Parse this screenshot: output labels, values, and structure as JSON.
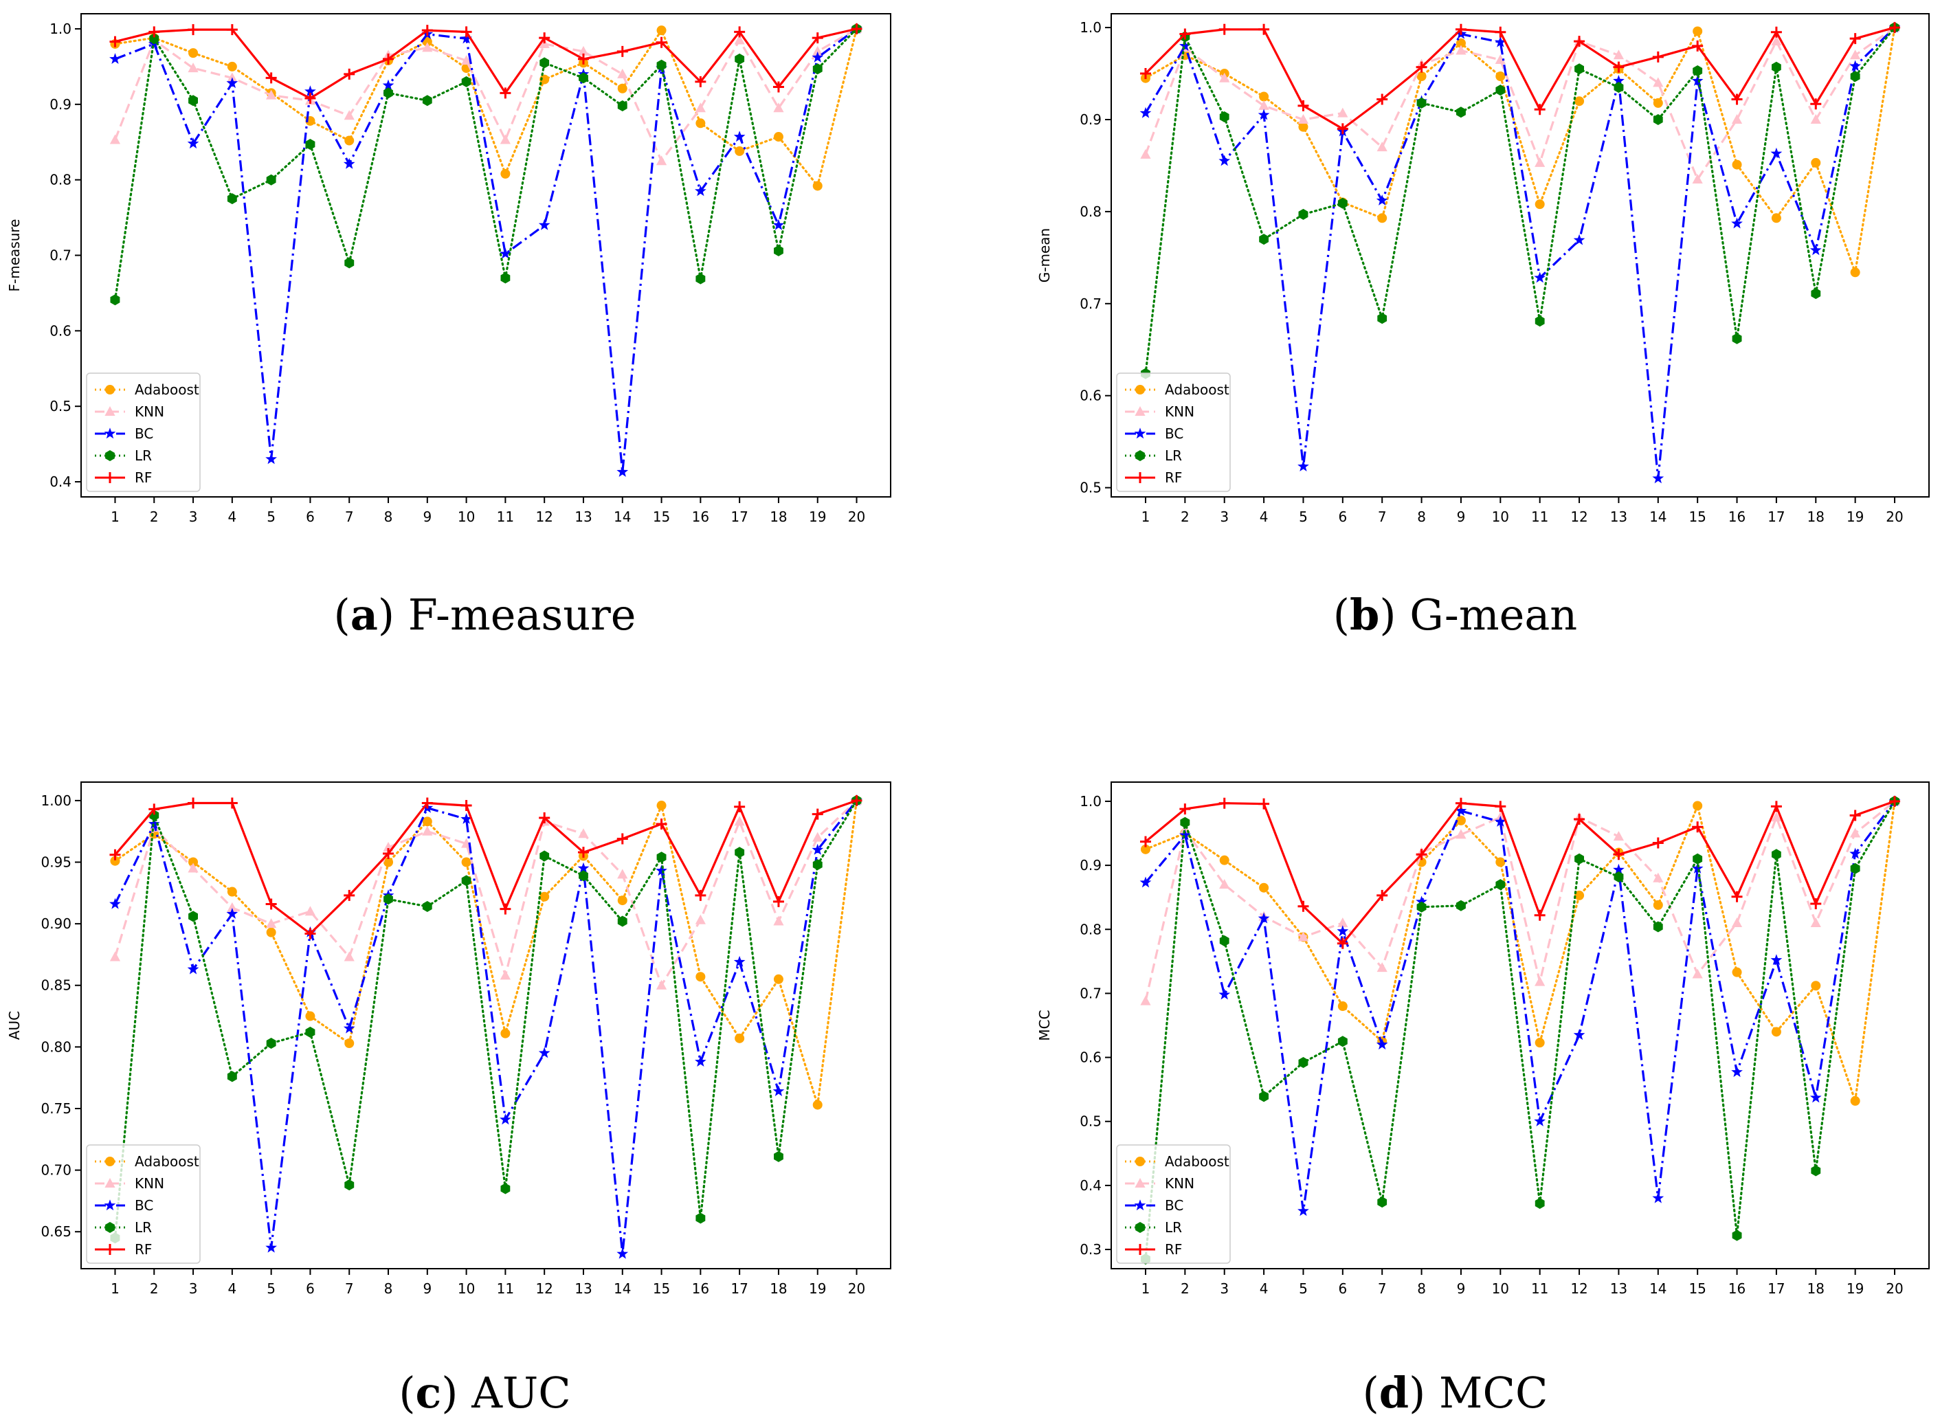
{
  "figure": {
    "captions": [
      {
        "letter": "a",
        "text": " F-measure"
      },
      {
        "letter": "b",
        "text": " G-mean"
      },
      {
        "letter": "c",
        "text": " AUC"
      },
      {
        "letter": "d",
        "text": " MCC"
      }
    ]
  },
  "series_styles": [
    {
      "name": "Adaboost",
      "color": "#ffa500",
      "marker": "circle",
      "dash": "dotted"
    },
    {
      "name": "KNN",
      "color": "#ffc0cb",
      "marker": "triangle",
      "dash": "dashed"
    },
    {
      "name": "BC",
      "color": "#0000ff",
      "marker": "star",
      "dash": "dashdot"
    },
    {
      "name": "LR",
      "color": "#008000",
      "marker": "hexagon",
      "dash": "dotted"
    },
    {
      "name": "RF",
      "color": "#ff0000",
      "marker": "plus",
      "dash": "solid"
    }
  ],
  "chart_data": [
    {
      "type": "line",
      "title": "",
      "xlabel": "",
      "ylabel": "F-measure",
      "x": [
        1,
        2,
        3,
        4,
        5,
        6,
        7,
        8,
        9,
        10,
        11,
        12,
        13,
        14,
        15,
        16,
        17,
        18,
        19,
        20
      ],
      "ylim": [
        0.38,
        1.02
      ],
      "yticks": [
        "0.4",
        "0.5",
        "0.6",
        "0.7",
        "0.8",
        "0.9",
        "1.0"
      ],
      "ytick_values": [
        0.4,
        0.5,
        0.6,
        0.7,
        0.8,
        0.9,
        1.0
      ],
      "legend": "lower-left",
      "grid": false,
      "series": [
        {
          "name": "Adaboost",
          "values": [
            0.98,
            0.988,
            0.968,
            0.95,
            0.915,
            0.878,
            0.852,
            0.958,
            0.983,
            0.948,
            0.808,
            0.933,
            0.955,
            0.921,
            0.998,
            0.875,
            0.838,
            0.857,
            0.792,
            1.0
          ]
        },
        {
          "name": "KNN",
          "values": [
            0.853,
            0.985,
            0.948,
            0.935,
            0.912,
            0.905,
            0.885,
            0.965,
            0.975,
            0.958,
            0.853,
            0.98,
            0.97,
            0.94,
            0.825,
            0.895,
            0.985,
            0.895,
            0.97,
            1.0
          ]
        },
        {
          "name": "BC",
          "values": [
            0.96,
            0.98,
            0.848,
            0.928,
            0.43,
            0.917,
            0.821,
            0.925,
            0.993,
            0.987,
            0.702,
            0.74,
            0.94,
            0.413,
            0.948,
            0.785,
            0.857,
            0.74,
            0.962,
            1.0
          ]
        },
        {
          "name": "LR",
          "values": [
            0.641,
            0.987,
            0.905,
            0.775,
            0.8,
            0.847,
            0.69,
            0.915,
            0.905,
            0.93,
            0.67,
            0.955,
            0.935,
            0.898,
            0.952,
            0.669,
            0.96,
            0.706,
            0.947,
            1.0
          ]
        },
        {
          "name": "RF",
          "values": [
            0.983,
            0.996,
            0.999,
            0.999,
            0.935,
            0.908,
            0.94,
            0.96,
            0.998,
            0.996,
            0.915,
            0.988,
            0.96,
            0.97,
            0.982,
            0.93,
            0.996,
            0.923,
            0.988,
            1.0
          ]
        }
      ]
    },
    {
      "type": "line",
      "title": "",
      "xlabel": "",
      "ylabel": "G-mean",
      "x": [
        1,
        2,
        3,
        4,
        5,
        6,
        7,
        8,
        9,
        10,
        11,
        12,
        13,
        14,
        15,
        16,
        17,
        18,
        19,
        20
      ],
      "ylim": [
        0.49,
        1.015
      ],
      "yticks": [
        "0.5",
        "0.6",
        "0.7",
        "0.8",
        "0.9",
        "1.0"
      ],
      "ytick_values": [
        0.5,
        0.6,
        0.7,
        0.8,
        0.9,
        1.0
      ],
      "legend": "lower-left",
      "grid": false,
      "series": [
        {
          "name": "Adaboost",
          "values": [
            0.945,
            0.97,
            0.95,
            0.925,
            0.892,
            0.81,
            0.793,
            0.947,
            0.983,
            0.947,
            0.808,
            0.92,
            0.955,
            0.918,
            0.996,
            0.851,
            0.793,
            0.853,
            0.734,
            1.0
          ]
        },
        {
          "name": "KNN",
          "values": [
            0.862,
            0.978,
            0.945,
            0.915,
            0.9,
            0.907,
            0.87,
            0.96,
            0.975,
            0.965,
            0.853,
            0.985,
            0.97,
            0.94,
            0.835,
            0.9,
            0.985,
            0.9,
            0.97,
            1.0
          ]
        },
        {
          "name": "BC",
          "values": [
            0.907,
            0.98,
            0.855,
            0.905,
            0.523,
            0.887,
            0.812,
            0.92,
            0.993,
            0.984,
            0.728,
            0.769,
            0.942,
            0.51,
            0.942,
            0.787,
            0.863,
            0.758,
            0.958,
            1.0
          ]
        },
        {
          "name": "LR",
          "values": [
            0.624,
            0.99,
            0.903,
            0.77,
            0.797,
            0.809,
            0.684,
            0.918,
            0.908,
            0.932,
            0.681,
            0.955,
            0.935,
            0.9,
            0.953,
            0.662,
            0.957,
            0.711,
            0.947,
            1.0
          ]
        },
        {
          "name": "RF",
          "values": [
            0.95,
            0.993,
            0.998,
            0.998,
            0.915,
            0.89,
            0.922,
            0.957,
            0.998,
            0.995,
            0.911,
            0.985,
            0.957,
            0.968,
            0.98,
            0.922,
            0.995,
            0.917,
            0.988,
            1.0
          ]
        }
      ]
    },
    {
      "type": "line",
      "title": "",
      "xlabel": "",
      "ylabel": "AUC",
      "x": [
        1,
        2,
        3,
        4,
        5,
        6,
        7,
        8,
        9,
        10,
        11,
        12,
        13,
        14,
        15,
        16,
        17,
        18,
        19,
        20
      ],
      "ylim": [
        0.62,
        1.015
      ],
      "yticks": [
        "0.65",
        "0.70",
        "0.75",
        "0.80",
        "0.85",
        "0.90",
        "0.95",
        "1.00"
      ],
      "ytick_values": [
        0.65,
        0.7,
        0.75,
        0.8,
        0.85,
        0.9,
        0.95,
        1.0
      ],
      "legend": "lower-left",
      "grid": false,
      "series": [
        {
          "name": "Adaboost",
          "values": [
            0.951,
            0.973,
            0.95,
            0.926,
            0.893,
            0.825,
            0.803,
            0.95,
            0.983,
            0.95,
            0.811,
            0.922,
            0.955,
            0.919,
            0.996,
            0.857,
            0.807,
            0.855,
            0.753,
            1.0
          ]
        },
        {
          "name": "KNN",
          "values": [
            0.873,
            0.978,
            0.945,
            0.913,
            0.9,
            0.91,
            0.873,
            0.962,
            0.975,
            0.965,
            0.858,
            0.983,
            0.973,
            0.94,
            0.85,
            0.903,
            0.983,
            0.902,
            0.97,
            1.0
          ]
        },
        {
          "name": "BC",
          "values": [
            0.916,
            0.981,
            0.863,
            0.908,
            0.637,
            0.893,
            0.815,
            0.923,
            0.994,
            0.985,
            0.741,
            0.795,
            0.945,
            0.632,
            0.943,
            0.788,
            0.869,
            0.764,
            0.96,
            1.0
          ]
        },
        {
          "name": "LR",
          "values": [
            0.645,
            0.988,
            0.906,
            0.776,
            0.803,
            0.812,
            0.688,
            0.92,
            0.914,
            0.935,
            0.685,
            0.955,
            0.939,
            0.902,
            0.954,
            0.661,
            0.958,
            0.711,
            0.948,
            1.0
          ]
        },
        {
          "name": "RF",
          "values": [
            0.956,
            0.993,
            0.998,
            0.998,
            0.916,
            0.892,
            0.923,
            0.957,
            0.998,
            0.996,
            0.912,
            0.986,
            0.958,
            0.969,
            0.981,
            0.923,
            0.995,
            0.918,
            0.989,
            1.0
          ]
        }
      ]
    },
    {
      "type": "line",
      "title": "",
      "xlabel": "",
      "ylabel": "MCC",
      "x": [
        1,
        2,
        3,
        4,
        5,
        6,
        7,
        8,
        9,
        10,
        11,
        12,
        13,
        14,
        15,
        16,
        17,
        18,
        19,
        20
      ],
      "ylim": [
        0.27,
        1.03
      ],
      "yticks": [
        "0.3",
        "0.4",
        "0.5",
        "0.6",
        "0.7",
        "0.8",
        "0.9",
        "1.0"
      ],
      "ytick_values": [
        0.3,
        0.4,
        0.5,
        0.6,
        0.7,
        0.8,
        0.9,
        1.0
      ],
      "legend": "lower-left",
      "grid": false,
      "series": [
        {
          "name": "Adaboost",
          "values": [
            0.925,
            0.95,
            0.908,
            0.865,
            0.788,
            0.68,
            0.625,
            0.905,
            0.97,
            0.905,
            0.623,
            0.853,
            0.92,
            0.838,
            0.993,
            0.733,
            0.64,
            0.712,
            0.532,
            1.0
          ]
        },
        {
          "name": "KNN",
          "values": [
            0.688,
            0.955,
            0.87,
            0.82,
            0.788,
            0.81,
            0.74,
            0.92,
            0.948,
            0.975,
            0.718,
            0.975,
            0.945,
            0.88,
            0.73,
            0.81,
            0.975,
            0.81,
            0.95,
            1.0
          ]
        },
        {
          "name": "BC",
          "values": [
            0.873,
            0.947,
            0.698,
            0.817,
            0.36,
            0.797,
            0.62,
            0.843,
            0.985,
            0.968,
            0.5,
            0.635,
            0.893,
            0.38,
            0.895,
            0.577,
            0.752,
            0.537,
            0.918,
            1.0
          ]
        },
        {
          "name": "LR",
          "values": [
            0.285,
            0.967,
            0.782,
            0.539,
            0.592,
            0.625,
            0.374,
            0.835,
            0.837,
            0.87,
            0.372,
            0.91,
            0.882,
            0.804,
            0.91,
            0.322,
            0.917,
            0.423,
            0.895,
            1.0
          ]
        },
        {
          "name": "RF",
          "values": [
            0.937,
            0.988,
            0.997,
            0.996,
            0.836,
            0.778,
            0.853,
            0.917,
            0.997,
            0.992,
            0.822,
            0.972,
            0.917,
            0.935,
            0.96,
            0.851,
            0.992,
            0.84,
            0.978,
            1.0
          ]
        }
      ]
    }
  ]
}
